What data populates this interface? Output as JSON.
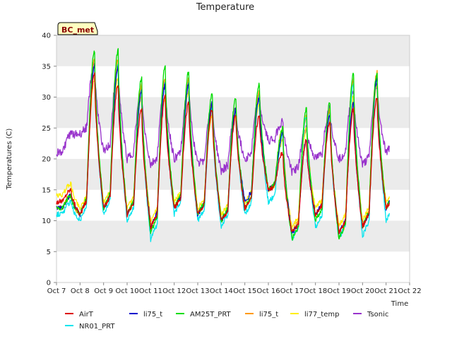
{
  "chart_data": {
    "type": "line",
    "title": "Temperature",
    "xlabel": "Time",
    "ylabel": "Temperatures (C)",
    "site_label": "BC_met",
    "xlim": [
      7,
      22
    ],
    "ylim": [
      0,
      40
    ],
    "grid": "horizontal bands",
    "legend_placement": "bottom",
    "x_ticks": [
      "Oct 7",
      "Oct 8",
      "Oct 9",
      "Oct 10",
      "Oct 11",
      "Oct 12",
      "Oct 13",
      "Oct 14",
      "Oct 15",
      "Oct 16",
      "Oct 17",
      "Oct 18",
      "Oct 19",
      "Oct 20",
      "Oct 21",
      "Oct 22"
    ],
    "y_ticks": [
      "0",
      "5",
      "10",
      "15",
      "20",
      "25",
      "30",
      "35",
      "40"
    ],
    "daily_extremes": {
      "days": [
        7,
        8,
        9,
        10,
        11,
        12,
        13,
        14,
        15,
        16,
        17,
        18,
        19,
        20,
        21
      ],
      "series": [
        {
          "name": "AirT",
          "color": "#dd0000",
          "min": [
            13,
            11,
            12,
            11,
            9,
            12,
            11,
            10,
            12,
            15,
            8,
            11,
            8,
            9,
            12
          ],
          "max": [
            null,
            34,
            32,
            28,
            30,
            29,
            28,
            27,
            27,
            21,
            23,
            26,
            28,
            30,
            29
          ]
        },
        {
          "name": "li75_t",
          "color": "#0000cc",
          "min": [
            12,
            11,
            12,
            11,
            9,
            12,
            11,
            10,
            13,
            15,
            8,
            11,
            8,
            9,
            12
          ],
          "max": [
            null,
            35,
            35,
            31,
            32,
            32,
            29,
            28,
            30,
            24,
            23,
            27,
            29,
            33,
            33
          ]
        },
        {
          "name": "AM25T_PRT",
          "color": "#00dd00",
          "min": [
            12,
            11,
            12,
            11,
            8,
            12,
            11,
            10,
            12,
            15,
            7,
            10,
            7,
            9,
            12
          ],
          "max": [
            null,
            37.5,
            37.5,
            33,
            35,
            34,
            30.5,
            30,
            32,
            25,
            28,
            29,
            34,
            34,
            34
          ]
        },
        {
          "name": "li75_t",
          "color": "#ff9900",
          "min": [
            12,
            11,
            12,
            11,
            9,
            12,
            11,
            10,
            12,
            15,
            8,
            11,
            7,
            9,
            12
          ],
          "max": [
            null,
            36,
            36,
            32,
            33,
            33,
            29,
            28,
            31,
            25,
            27,
            28,
            33,
            34,
            33
          ]
        },
        {
          "name": "li77_temp",
          "color": "#ffee00",
          "min": [
            14,
            12,
            13,
            12,
            10,
            13,
            12,
            11,
            13,
            15,
            9,
            12,
            9,
            10,
            13
          ],
          "max": [
            null,
            33,
            33,
            30,
            30,
            31,
            27,
            27,
            29,
            23,
            25,
            26,
            30,
            32,
            32
          ]
        },
        {
          "name": "NR01_PRT",
          "color": "#00e5ee",
          "min": [
            11,
            10,
            11,
            10,
            7,
            11,
            10,
            9,
            11,
            13,
            7,
            9,
            7,
            7.5,
            10
          ],
          "max": [
            null,
            35,
            35,
            31,
            32,
            32,
            28,
            28,
            30,
            24,
            27,
            27,
            32,
            33,
            32
          ]
        },
        {
          "name": "Tsonic",
          "color": "#9933cc",
          "min": [
            21,
            24,
            21,
            20,
            19,
            20,
            19,
            18,
            20,
            23,
            18,
            20,
            20,
            19,
            21
          ],
          "max": [
            24,
            35.5,
            35,
            31,
            32,
            32,
            29,
            28,
            30,
            26,
            25,
            28,
            31,
            32,
            33
          ]
        }
      ]
    }
  },
  "legend": {
    "items": [
      {
        "label": "AirT",
        "color": "#dd0000"
      },
      {
        "label": "li75_t",
        "color": "#0000cc"
      },
      {
        "label": "AM25T_PRT",
        "color": "#00dd00"
      },
      {
        "label": "li75_t",
        "color": "#ff9900"
      },
      {
        "label": "li77_temp",
        "color": "#ffee00"
      },
      {
        "label": "Tsonic",
        "color": "#9933cc"
      },
      {
        "label": "NR01_PRT",
        "color": "#00e5ee"
      }
    ]
  },
  "colors": {
    "band": "#ebebeb",
    "badge_fill": "#ffffc0",
    "badge_text": "#8b0000"
  }
}
